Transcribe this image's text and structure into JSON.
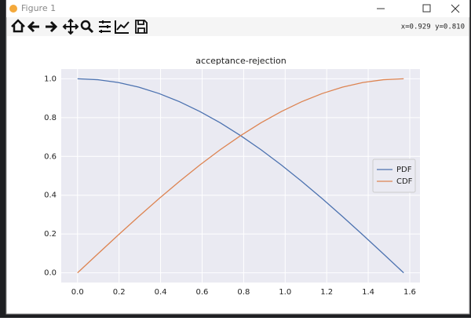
{
  "window": {
    "title": "Figure 1",
    "coords": "x=0.929 y=0.810"
  },
  "chart_data": {
    "type": "line",
    "title": "acceptance-rejection",
    "x": [
      0,
      0.0982,
      0.1963,
      0.2945,
      0.3927,
      0.4909,
      0.589,
      0.6872,
      0.7854,
      0.8836,
      0.9817,
      1.0799,
      1.1781,
      1.2763,
      1.3744,
      1.4726,
      1.5708
    ],
    "series": [
      {
        "name": "PDF",
        "color": "#4c72b0",
        "values": [
          1,
          0.9952,
          0.9808,
          0.9569,
          0.9239,
          0.8819,
          0.8315,
          0.773,
          0.7071,
          0.6344,
          0.5556,
          0.4714,
          0.3827,
          0.2903,
          0.1951,
          0.098,
          0
        ]
      },
      {
        "name": "CDF",
        "color": "#dd8452",
        "values": [
          0,
          0.098,
          0.1951,
          0.2903,
          0.3827,
          0.4714,
          0.5556,
          0.6344,
          0.7071,
          0.773,
          0.8315,
          0.8819,
          0.9239,
          0.9569,
          0.9808,
          0.9952,
          1
        ]
      }
    ],
    "xlim": [
      -0.0785,
      1.6493
    ],
    "ylim": [
      -0.05,
      1.05
    ],
    "xticks": [
      {
        "value": 0,
        "label": "0.0"
      },
      {
        "value": 0.2,
        "label": "0.2"
      },
      {
        "value": 0.4,
        "label": "0.4"
      },
      {
        "value": 0.6,
        "label": "0.6"
      },
      {
        "value": 0.8,
        "label": "0.8"
      },
      {
        "value": 1,
        "label": "1.0"
      },
      {
        "value": 1.2,
        "label": "1.2"
      },
      {
        "value": 1.4,
        "label": "1.4"
      },
      {
        "value": 1.6,
        "label": "1.6"
      }
    ],
    "yticks": [
      {
        "value": 0,
        "label": "0.0"
      },
      {
        "value": 0.2,
        "label": "0.2"
      },
      {
        "value": 0.4,
        "label": "0.4"
      },
      {
        "value": 0.6,
        "label": "0.6"
      },
      {
        "value": 0.8,
        "label": "0.8"
      },
      {
        "value": 1,
        "label": "1.0"
      }
    ],
    "grid": true,
    "legend": "center right"
  }
}
